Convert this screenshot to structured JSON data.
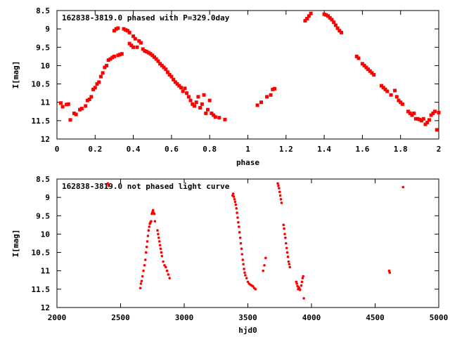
{
  "chart_data": [
    {
      "type": "scatter",
      "title": "162838-3819.0 phased with P=329.0day",
      "xlabel": "phase",
      "ylabel": "I[mag]",
      "xlim": [
        0,
        2
      ],
      "ylim": [
        8.5,
        12
      ],
      "y_inverted": true,
      "grid": false,
      "color": "#ff0000",
      "marker": "filled-square",
      "x_ticks": [
        "0",
        "0.2",
        "0.4",
        "0.6",
        "0.8",
        "1",
        "1.2",
        "1.4",
        "1.6",
        "1.8",
        "2"
      ],
      "y_ticks": [
        "8.5",
        "9",
        "9.5",
        "10",
        "10.5",
        "11",
        "11.5",
        "12"
      ],
      "points": [
        [
          0.02,
          11.02
        ],
        [
          0.03,
          11.12
        ],
        [
          0.05,
          11.06
        ],
        [
          0.06,
          11.05
        ],
        [
          0.07,
          11.48
        ],
        [
          0.09,
          11.3
        ],
        [
          0.1,
          11.33
        ],
        [
          0.12,
          11.2
        ],
        [
          0.13,
          11.17
        ],
        [
          0.15,
          11.1
        ],
        [
          0.16,
          10.95
        ],
        [
          0.17,
          10.92
        ],
        [
          0.18,
          10.85
        ],
        [
          0.19,
          10.65
        ],
        [
          0.2,
          10.6
        ],
        [
          0.21,
          10.5
        ],
        [
          0.22,
          10.45
        ],
        [
          0.23,
          10.3
        ],
        [
          0.24,
          10.2
        ],
        [
          0.25,
          10.05
        ],
        [
          0.26,
          10.0
        ],
        [
          0.27,
          9.85
        ],
        [
          0.28,
          9.82
        ],
        [
          0.29,
          9.78
        ],
        [
          0.3,
          9.75
        ],
        [
          0.3,
          9.05
        ],
        [
          0.31,
          9.0
        ],
        [
          0.32,
          8.98
        ],
        [
          0.32,
          9.72
        ],
        [
          0.33,
          9.7
        ],
        [
          0.34,
          9.68
        ],
        [
          0.35,
          9.0
        ],
        [
          0.36,
          9.03
        ],
        [
          0.37,
          9.05
        ],
        [
          0.38,
          9.1
        ],
        [
          0.38,
          9.4
        ],
        [
          0.39,
          9.45
        ],
        [
          0.4,
          9.2
        ],
        [
          0.4,
          9.5
        ],
        [
          0.41,
          9.27
        ],
        [
          0.42,
          9.5
        ],
        [
          0.43,
          9.33
        ],
        [
          0.44,
          9.38
        ],
        [
          0.45,
          9.55
        ],
        [
          0.46,
          9.6
        ],
        [
          0.47,
          9.62
        ],
        [
          0.48,
          9.65
        ],
        [
          0.49,
          9.68
        ],
        [
          0.5,
          9.72
        ],
        [
          0.51,
          9.77
        ],
        [
          0.52,
          9.82
        ],
        [
          0.53,
          9.88
        ],
        [
          0.54,
          9.95
        ],
        [
          0.55,
          10.0
        ],
        [
          0.56,
          10.05
        ],
        [
          0.57,
          10.1
        ],
        [
          0.58,
          10.18
        ],
        [
          0.59,
          10.25
        ],
        [
          0.6,
          10.3
        ],
        [
          0.61,
          10.38
        ],
        [
          0.62,
          10.45
        ],
        [
          0.63,
          10.5
        ],
        [
          0.64,
          10.55
        ],
        [
          0.65,
          10.6
        ],
        [
          0.66,
          10.7
        ],
        [
          0.67,
          10.62
        ],
        [
          0.68,
          10.75
        ],
        [
          0.69,
          10.85
        ],
        [
          0.7,
          10.95
        ],
        [
          0.71,
          11.05
        ],
        [
          0.72,
          11.1
        ],
        [
          0.73,
          11.0
        ],
        [
          0.74,
          10.85
        ],
        [
          0.75,
          11.15
        ],
        [
          0.76,
          11.05
        ],
        [
          0.77,
          10.8
        ],
        [
          0.78,
          11.3
        ],
        [
          0.79,
          11.2
        ],
        [
          0.8,
          10.95
        ],
        [
          0.81,
          11.3
        ],
        [
          0.82,
          11.35
        ],
        [
          0.83,
          11.4
        ],
        [
          0.85,
          11.42
        ],
        [
          0.88,
          11.47
        ],
        [
          1.05,
          11.08
        ],
        [
          1.07,
          11.0
        ],
        [
          1.1,
          10.85
        ],
        [
          1.12,
          10.8
        ],
        [
          1.13,
          10.65
        ],
        [
          1.14,
          10.63
        ],
        [
          1.3,
          8.78
        ],
        [
          1.31,
          8.72
        ],
        [
          1.32,
          8.65
        ],
        [
          1.33,
          8.58
        ],
        [
          1.4,
          8.6
        ],
        [
          1.41,
          8.62
        ],
        [
          1.42,
          8.65
        ],
        [
          1.43,
          8.7
        ],
        [
          1.44,
          8.75
        ],
        [
          1.45,
          8.82
        ],
        [
          1.46,
          8.9
        ],
        [
          1.47,
          8.98
        ],
        [
          1.48,
          9.05
        ],
        [
          1.49,
          9.1
        ],
        [
          1.57,
          9.75
        ],
        [
          1.58,
          9.8
        ],
        [
          1.6,
          9.95
        ],
        [
          1.61,
          10.0
        ],
        [
          1.62,
          10.05
        ],
        [
          1.63,
          10.1
        ],
        [
          1.64,
          10.15
        ],
        [
          1.65,
          10.2
        ],
        [
          1.66,
          10.25
        ],
        [
          1.7,
          10.55
        ],
        [
          1.71,
          10.6
        ],
        [
          1.72,
          10.65
        ],
        [
          1.73,
          10.7
        ],
        [
          1.75,
          10.8
        ],
        [
          1.77,
          10.68
        ],
        [
          1.78,
          10.85
        ],
        [
          1.79,
          10.95
        ],
        [
          1.8,
          11.0
        ],
        [
          1.81,
          11.05
        ],
        [
          1.84,
          11.25
        ],
        [
          1.85,
          11.3
        ],
        [
          1.86,
          11.35
        ],
        [
          1.87,
          11.3
        ],
        [
          1.88,
          11.45
        ],
        [
          1.89,
          11.45
        ],
        [
          1.9,
          11.47
        ],
        [
          1.91,
          11.5
        ],
        [
          1.92,
          11.45
        ],
        [
          1.93,
          11.6
        ],
        [
          1.94,
          11.55
        ],
        [
          1.95,
          11.48
        ],
        [
          1.96,
          11.35
        ],
        [
          1.97,
          11.3
        ],
        [
          1.98,
          11.25
        ],
        [
          1.99,
          11.75
        ],
        [
          2.0,
          11.28
        ]
      ]
    },
    {
      "type": "scatter",
      "title": "162838-3819.0 not phased light curve",
      "xlabel": "hjd0",
      "ylabel": "I[mag]",
      "xlim": [
        2000,
        5000
      ],
      "ylim": [
        8.5,
        12
      ],
      "y_inverted": true,
      "grid": false,
      "color": "#ff0000",
      "marker": "small-dot",
      "x_ticks": [
        "2000",
        "2500",
        "3000",
        "3500",
        "4000",
        "4500",
        "5000"
      ],
      "y_ticks": [
        "8.5",
        "9",
        "9.5",
        "10",
        "10.5",
        "11",
        "11.5",
        "12"
      ],
      "points": [
        [
          2400,
          8.62
        ],
        [
          2405,
          8.68
        ],
        [
          2655,
          11.47
        ],
        [
          2660,
          11.35
        ],
        [
          2665,
          11.28
        ],
        [
          2672,
          11.15
        ],
        [
          2680,
          11.0
        ],
        [
          2688,
          10.85
        ],
        [
          2695,
          10.7
        ],
        [
          2700,
          10.5
        ],
        [
          2705,
          10.35
        ],
        [
          2710,
          10.2
        ],
        [
          2715,
          10.05
        ],
        [
          2720,
          9.9
        ],
        [
          2725,
          9.8
        ],
        [
          2730,
          9.72
        ],
        [
          2735,
          9.68
        ],
        [
          2740,
          9.65
        ],
        [
          2745,
          9.45
        ],
        [
          2750,
          9.4
        ],
        [
          2755,
          9.35
        ],
        [
          2760,
          9.42
        ],
        [
          2765,
          9.45
        ],
        [
          2770,
          9.65
        ],
        [
          2790,
          9.9
        ],
        [
          2795,
          10.0
        ],
        [
          2800,
          10.1
        ],
        [
          2805,
          10.2
        ],
        [
          2810,
          10.3
        ],
        [
          2815,
          10.4
        ],
        [
          2820,
          10.5
        ],
        [
          2825,
          10.6
        ],
        [
          2835,
          10.75
        ],
        [
          2845,
          10.85
        ],
        [
          2855,
          10.9
        ],
        [
          2865,
          11.0
        ],
        [
          2875,
          11.1
        ],
        [
          2885,
          11.2
        ],
        [
          3380,
          8.95
        ],
        [
          3385,
          8.9
        ],
        [
          3390,
          8.98
        ],
        [
          3395,
          9.05
        ],
        [
          3400,
          9.12
        ],
        [
          3405,
          9.2
        ],
        [
          3410,
          9.3
        ],
        [
          3415,
          9.42
        ],
        [
          3420,
          9.55
        ],
        [
          3425,
          9.68
        ],
        [
          3430,
          9.8
        ],
        [
          3435,
          9.95
        ],
        [
          3440,
          10.1
        ],
        [
          3445,
          10.25
        ],
        [
          3450,
          10.4
        ],
        [
          3455,
          10.55
        ],
        [
          3460,
          10.7
        ],
        [
          3465,
          10.82
        ],
        [
          3470,
          10.95
        ],
        [
          3475,
          11.05
        ],
        [
          3480,
          11.12
        ],
        [
          3490,
          11.2
        ],
        [
          3500,
          11.3
        ],
        [
          3510,
          11.35
        ],
        [
          3520,
          11.38
        ],
        [
          3530,
          11.4
        ],
        [
          3540,
          11.42
        ],
        [
          3550,
          11.47
        ],
        [
          3560,
          11.5
        ],
        [
          3620,
          11.0
        ],
        [
          3630,
          10.85
        ],
        [
          3640,
          10.65
        ],
        [
          3735,
          8.62
        ],
        [
          3740,
          8.68
        ],
        [
          3745,
          8.75
        ],
        [
          3750,
          8.85
        ],
        [
          3755,
          8.95
        ],
        [
          3760,
          9.05
        ],
        [
          3765,
          9.15
        ],
        [
          3780,
          9.75
        ],
        [
          3785,
          9.85
        ],
        [
          3790,
          10.0
        ],
        [
          3795,
          10.1
        ],
        [
          3800,
          10.25
        ],
        [
          3805,
          10.38
        ],
        [
          3810,
          10.5
        ],
        [
          3815,
          10.62
        ],
        [
          3820,
          10.75
        ],
        [
          3825,
          10.82
        ],
        [
          3830,
          10.9
        ],
        [
          3880,
          11.3
        ],
        [
          3885,
          11.35
        ],
        [
          3890,
          11.42
        ],
        [
          3895,
          11.5
        ],
        [
          3900,
          11.45
        ],
        [
          3905,
          11.48
        ],
        [
          3910,
          11.52
        ],
        [
          3920,
          11.4
        ],
        [
          3925,
          11.3
        ],
        [
          3930,
          11.2
        ],
        [
          3935,
          11.15
        ],
        [
          3940,
          11.75
        ],
        [
          4610,
          11.0
        ],
        [
          4615,
          11.05
        ],
        [
          4720,
          8.72
        ]
      ]
    }
  ]
}
